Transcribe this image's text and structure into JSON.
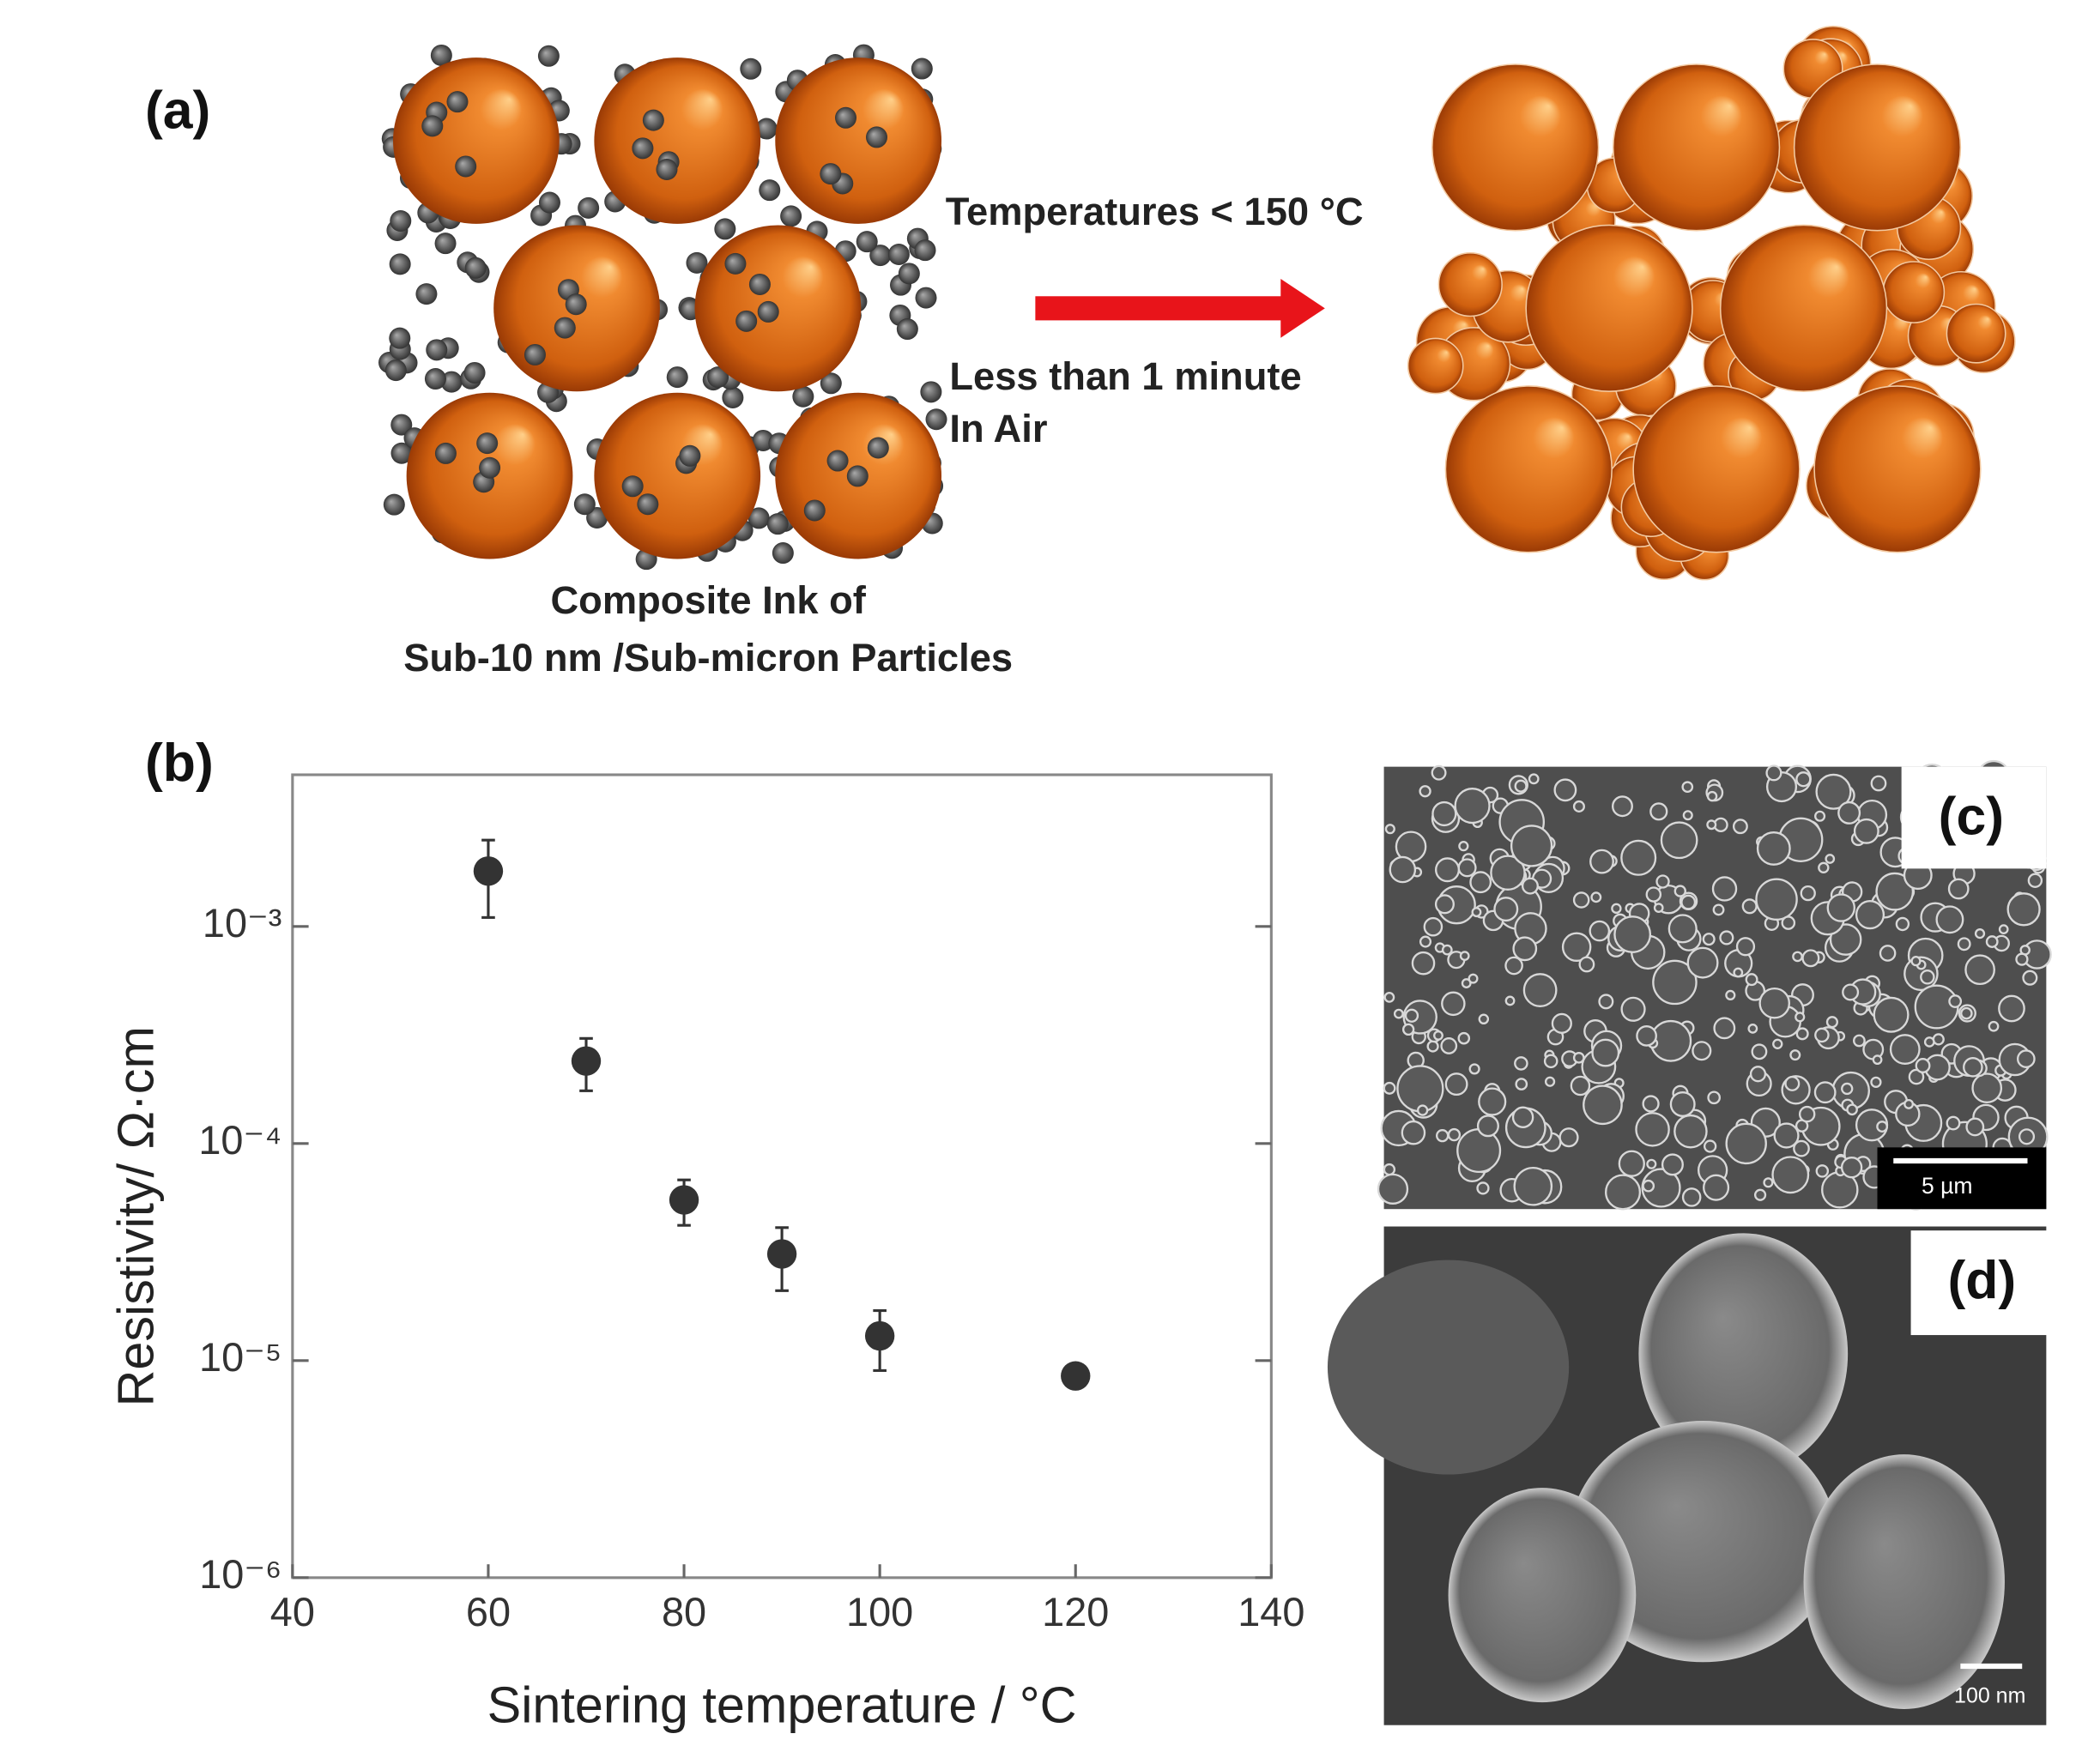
{
  "panels": {
    "a": {
      "label": "(a)",
      "conditions": [
        "Temperatures < 150 °C",
        "Less than 1 minute",
        "In Air"
      ],
      "caption": [
        "Composite Ink of",
        "Sub-10 nm /Sub-micron Particles"
      ]
    },
    "b": {
      "label": "(b)"
    },
    "c": {
      "label": "(c)",
      "scale_bar": "5 µm"
    },
    "d": {
      "label": "(d)",
      "scale_bar": "100 nm"
    }
  },
  "chart_data": {
    "type": "scatter",
    "x": [
      60,
      70,
      80,
      90,
      100,
      120
    ],
    "values": [
      0.0018,
      0.00024,
      5.5e-05,
      3.1e-05,
      1.3e-05,
      8.5e-06
    ],
    "errors": [
      0.0007,
      6.5e-05,
      1.3e-05,
      1e-05,
      4e-06,
      null
    ],
    "color": "#333333",
    "xlabel": "Sintering temperature / °C",
    "ylabel": "Resistivity/ Ω·cm",
    "xlim": [
      40,
      140
    ],
    "xticks": [
      40,
      60,
      80,
      100,
      120,
      140
    ],
    "ylim": [
      1e-06,
      0.005
    ],
    "log_y": true,
    "yticks": [
      {
        "value": 0.001,
        "label": "10⁻³"
      },
      {
        "value": 0.0001,
        "label": "10⁻⁴"
      },
      {
        "value": 1e-05,
        "label": "10⁻⁵"
      },
      {
        "value": 1e-06,
        "label": "10⁻⁶"
      }
    ]
  }
}
